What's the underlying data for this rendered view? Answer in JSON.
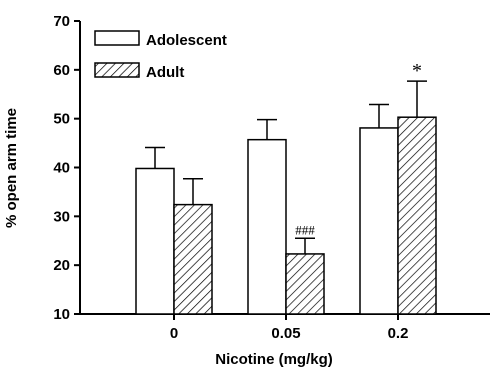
{
  "chart_data": {
    "type": "bar",
    "title": "",
    "xlabel": "Nicotine (mg/kg)",
    "ylabel": "% open arm time",
    "categories": [
      "0",
      "0.05",
      "0.2"
    ],
    "ylim": [
      10,
      70
    ],
    "yticks": [
      10,
      20,
      30,
      40,
      50,
      60,
      70
    ],
    "grid": false,
    "legend_position": "top-left",
    "series": [
      {
        "name": "Adolescent",
        "pattern": "open",
        "values": [
          39.8,
          45.7,
          48.1
        ],
        "errors": [
          4.3,
          4.1,
          4.8
        ]
      },
      {
        "name": "Adult",
        "pattern": "hatched",
        "values": [
          32.4,
          22.3,
          50.3
        ],
        "errors": [
          5.3,
          3.2,
          7.4
        ]
      }
    ],
    "annotations": [
      {
        "category": "0.05",
        "series": "Adult",
        "text": "###"
      },
      {
        "category": "0.2",
        "series": "Adult",
        "text": "*"
      }
    ],
    "colors": {
      "stroke": "#000000",
      "fill": "#ffffff"
    }
  }
}
